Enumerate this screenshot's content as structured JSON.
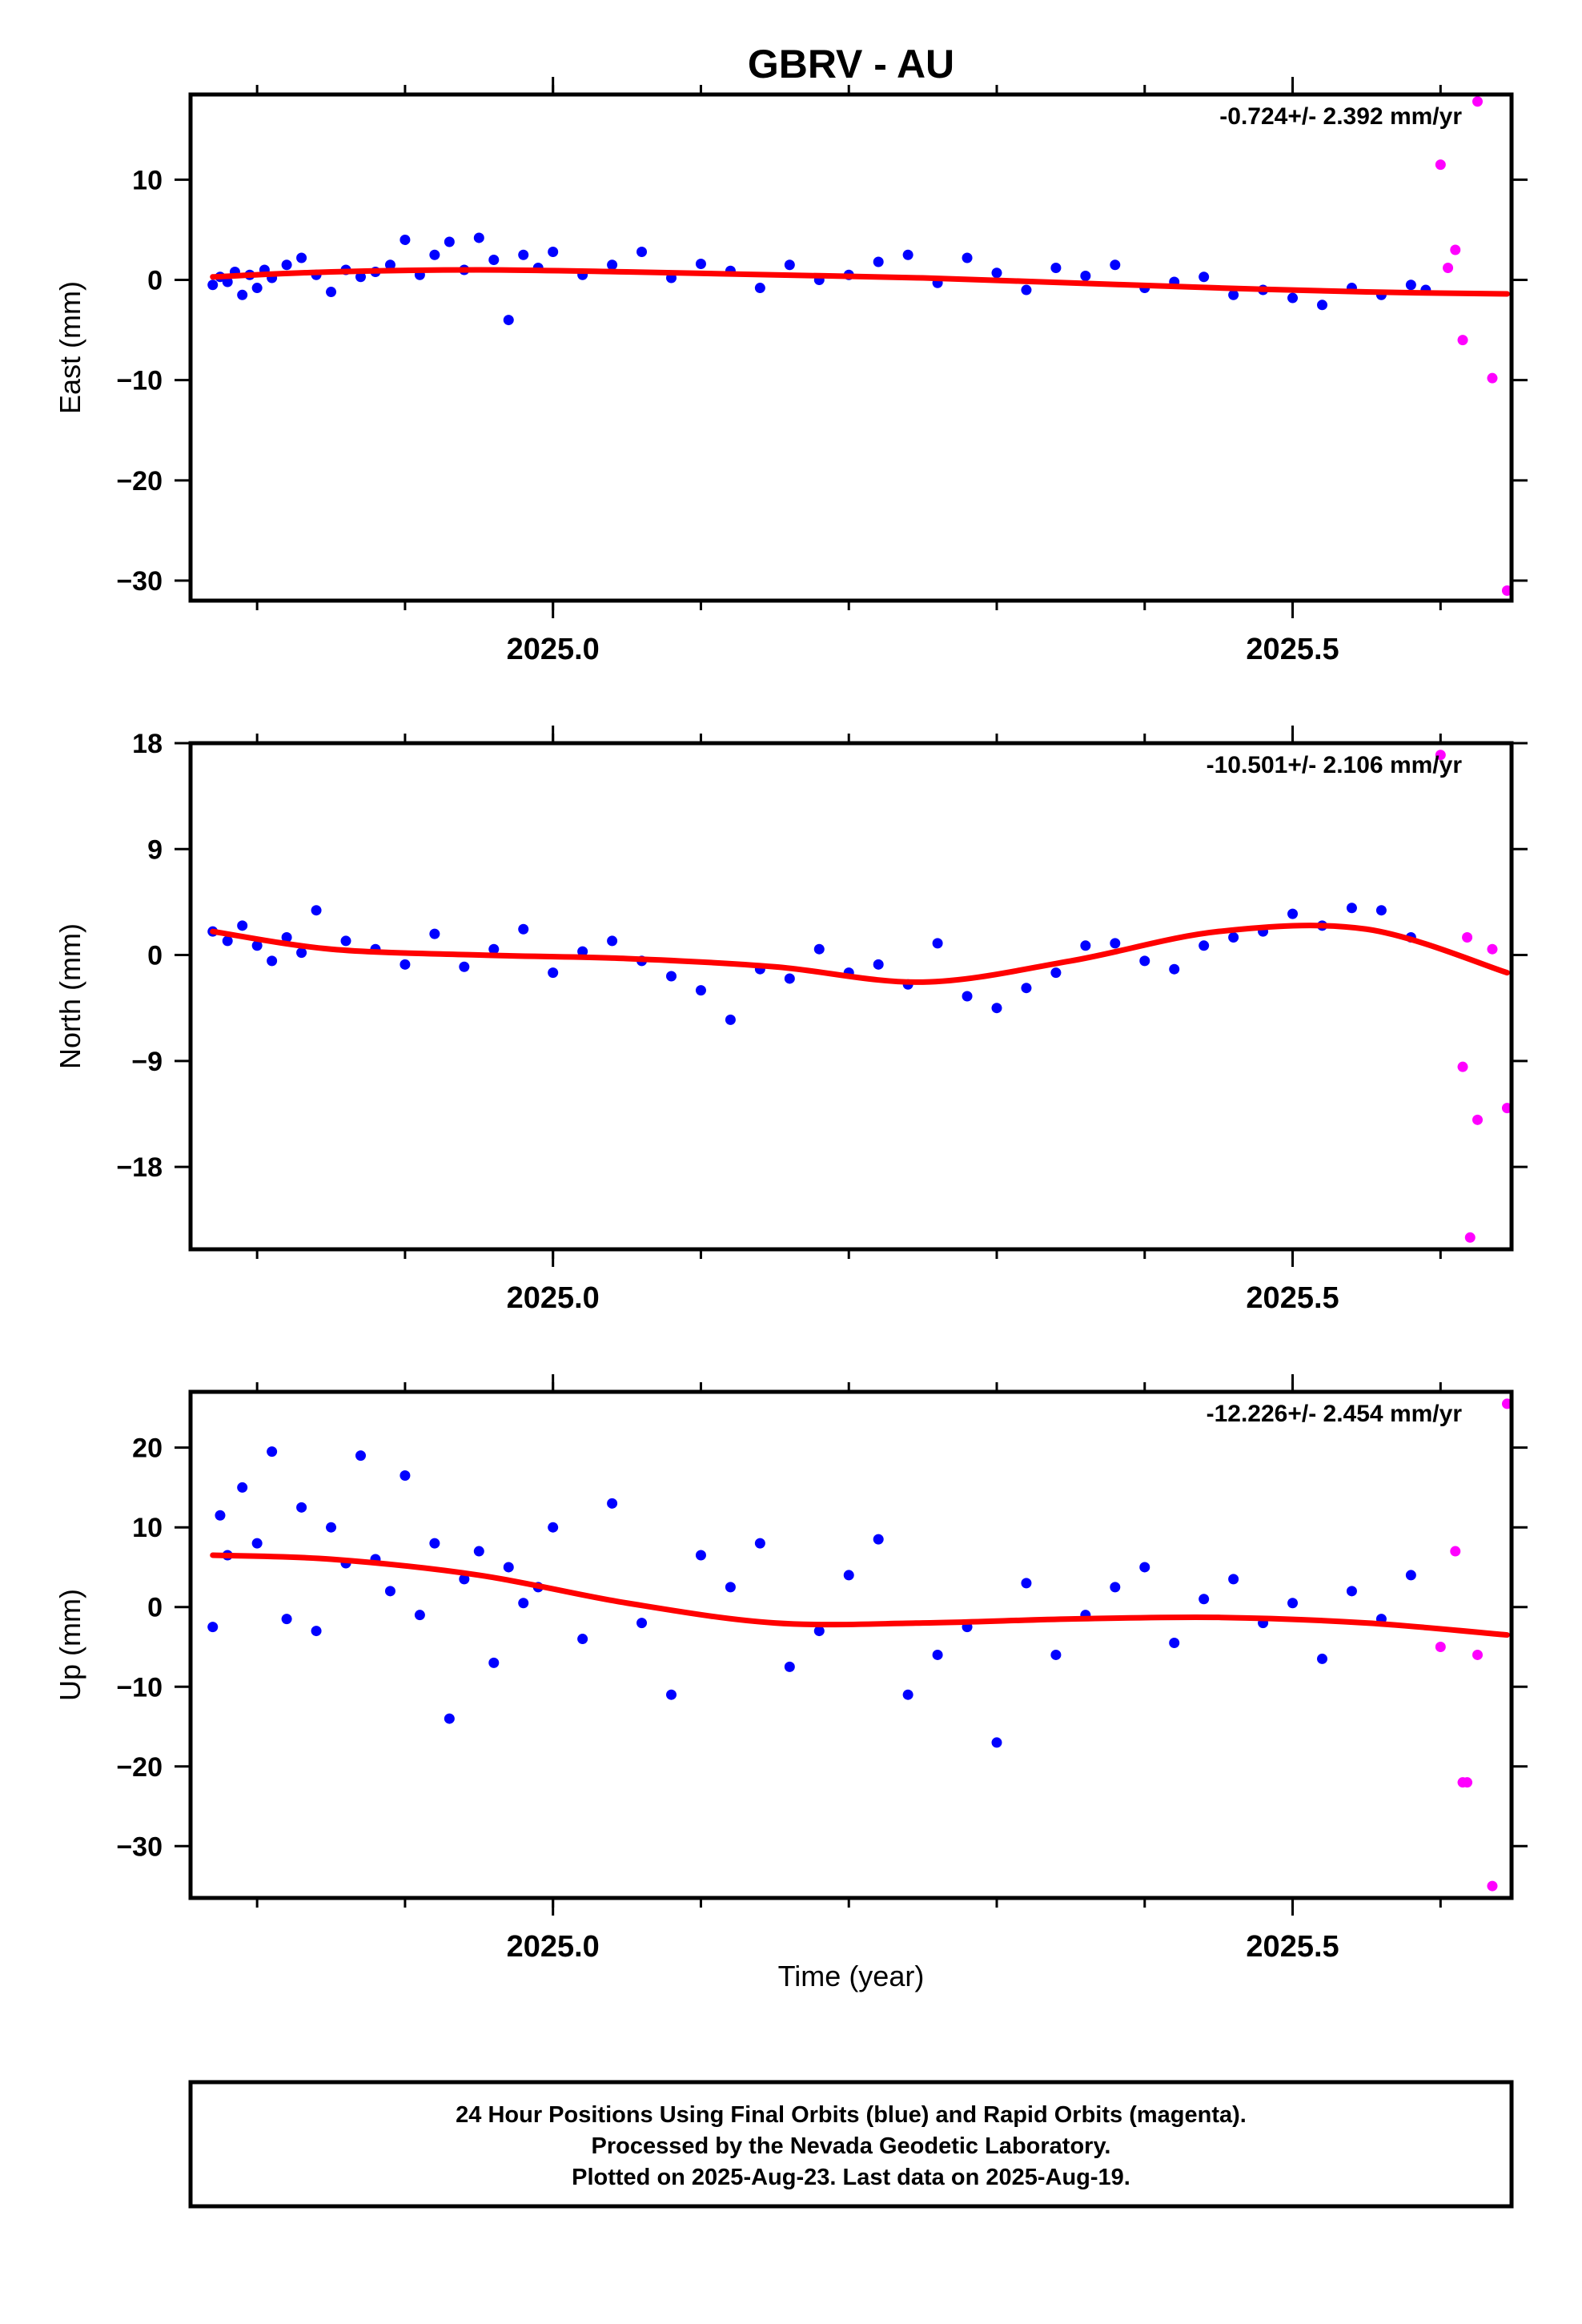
{
  "chart_data": {
    "type": "scatter",
    "title": "GBRV - AU",
    "xlabel": "Time (year)",
    "xticks": [
      2025.0,
      2025.5
    ],
    "xtick_labels": [
      "2025.0",
      "2025.5"
    ],
    "xlim": [
      2024.755,
      2025.648
    ],
    "colors": {
      "final": "#0000ff",
      "rapid": "#ff00ff",
      "fit": "#ff0000"
    },
    "footnote": [
      "24 Hour Positions Using Final Orbits (blue) and Rapid Orbits (magenta).",
      "Processed by the Nevada Geodetic Laboratory.",
      "Plotted on 2025-Aug-23. Last data on 2025-Aug-19."
    ],
    "panels": [
      {
        "name": "east",
        "ylabel": "East (mm)",
        "rate_label": "-0.724+/- 2.392 mm/yr",
        "ylim": [
          -32,
          18.5
        ],
        "yticks": [
          -30,
          -20,
          -10,
          0,
          10
        ],
        "ytick_labels": [
          "−30",
          "−20",
          "−10",
          "0",
          "10"
        ],
        "final": {
          "x": [
            2024.77,
            2024.775,
            2024.78,
            2024.785,
            2024.79,
            2024.795,
            2024.8,
            2024.805,
            2024.81,
            2024.82,
            2024.83,
            2024.84,
            2024.85,
            2024.86,
            2024.87,
            2024.88,
            2024.89,
            2024.9,
            2024.91,
            2024.92,
            2024.93,
            2024.94,
            2024.95,
            2024.96,
            2024.97,
            2024.98,
            2024.99,
            2025.0,
            2025.02,
            2025.04,
            2025.06,
            2025.08,
            2025.1,
            2025.12,
            2025.14,
            2025.16,
            2025.18,
            2025.2,
            2025.22,
            2025.24,
            2025.26,
            2025.28,
            2025.3,
            2025.32,
            2025.34,
            2025.36,
            2025.38,
            2025.4,
            2025.42,
            2025.44,
            2025.46,
            2025.48,
            2025.5,
            2025.52,
            2025.54,
            2025.56,
            2025.58,
            2025.59
          ],
          "y": [
            -0.5,
            0.3,
            -0.2,
            0.8,
            -1.5,
            0.5,
            -0.8,
            1.0,
            0.2,
            1.5,
            2.2,
            0.5,
            -1.2,
            1.0,
            0.3,
            0.8,
            1.5,
            4.0,
            0.5,
            2.5,
            3.8,
            1.0,
            4.2,
            2.0,
            -4.0,
            2.5,
            1.2,
            2.8,
            0.5,
            1.5,
            2.8,
            0.2,
            1.6,
            0.9,
            -0.8,
            1.5,
            0.0,
            0.5,
            1.8,
            2.5,
            -0.3,
            2.2,
            0.7,
            -1.0,
            1.2,
            0.4,
            1.5,
            -0.8,
            -0.2,
            0.3,
            -1.5,
            -1.0,
            -1.8,
            -2.5,
            -0.8,
            -1.5,
            -0.5,
            -1.0
          ]
        },
        "rapid": {
          "x": [
            2025.6,
            2025.605,
            2025.61,
            2025.615,
            2025.625,
            2025.635,
            2025.645
          ],
          "y": [
            11.5,
            1.2,
            3.0,
            -6.0,
            17.8,
            -9.8,
            -31.0
          ]
        },
        "fit": {
          "x": [
            2024.77,
            2024.85,
            2024.95,
            2025.05,
            2025.15,
            2025.25,
            2025.35,
            2025.45,
            2025.55,
            2025.645
          ],
          "y": [
            0.3,
            0.8,
            1.0,
            0.8,
            0.5,
            0.2,
            -0.3,
            -0.8,
            -1.2,
            -1.4
          ]
        }
      },
      {
        "name": "north",
        "ylabel": "North (mm)",
        "rate_label": "-10.501+/- 2.106 mm/yr",
        "ylim": [
          -25,
          18
        ],
        "yticks": [
          -18,
          -9,
          0,
          9,
          18
        ],
        "ytick_labels": [
          "−18",
          "−9",
          "0",
          "9",
          "18"
        ],
        "final": {
          "x": [
            2024.77,
            2024.78,
            2024.79,
            2024.8,
            2024.81,
            2024.82,
            2024.83,
            2024.84,
            2024.86,
            2024.88,
            2024.9,
            2024.92,
            2024.94,
            2024.96,
            2024.98,
            2025.0,
            2025.02,
            2025.04,
            2025.06,
            2025.08,
            2025.1,
            2025.12,
            2025.14,
            2025.16,
            2025.18,
            2025.2,
            2025.22,
            2025.24,
            2025.26,
            2025.28,
            2025.3,
            2025.32,
            2025.34,
            2025.36,
            2025.38,
            2025.4,
            2025.42,
            2025.44,
            2025.46,
            2025.48,
            2025.5,
            2025.52,
            2025.54,
            2025.56,
            2025.58
          ],
          "y": [
            2.0,
            1.2,
            2.5,
            0.8,
            -0.5,
            1.5,
            0.2,
            3.8,
            1.2,
            0.5,
            -0.8,
            1.8,
            -1.0,
            0.5,
            2.2,
            -1.5,
            0.3,
            1.2,
            -0.5,
            -1.8,
            -3.0,
            -5.5,
            -1.2,
            -2.0,
            0.5,
            -1.5,
            -0.8,
            -2.5,
            1.0,
            -3.5,
            -4.5,
            -2.8,
            -1.5,
            0.8,
            1.0,
            -0.5,
            -1.2,
            0.8,
            1.5,
            2.0,
            3.5,
            2.5,
            4.0,
            3.8,
            1.5
          ]
        },
        "rapid": {
          "x": [
            2025.6,
            2025.615,
            2025.618,
            2025.62,
            2025.625,
            2025.635,
            2025.645
          ],
          "y": [
            17.0,
            -9.5,
            1.5,
            -24.0,
            -14.0,
            0.5,
            -13.0
          ]
        },
        "fit": {
          "x": [
            2024.77,
            2024.85,
            2024.95,
            2025.05,
            2025.15,
            2025.25,
            2025.35,
            2025.45,
            2025.55,
            2025.645
          ],
          "y": [
            2.0,
            0.5,
            0.0,
            -0.3,
            -1.0,
            -2.3,
            -0.5,
            2.0,
            2.2,
            -1.5
          ]
        }
      },
      {
        "name": "up",
        "ylabel": "Up (mm)",
        "rate_label": "-12.226+/- 2.454 mm/yr",
        "ylim": [
          -36.5,
          27
        ],
        "yticks": [
          -30,
          -20,
          -10,
          0,
          10,
          20
        ],
        "ytick_labels": [
          "−30",
          "−20",
          "−10",
          "0",
          "10",
          "20"
        ],
        "final": {
          "x": [
            2024.77,
            2024.775,
            2024.78,
            2024.79,
            2024.8,
            2024.81,
            2024.82,
            2024.83,
            2024.84,
            2024.85,
            2024.86,
            2024.87,
            2024.88,
            2024.89,
            2024.9,
            2024.91,
            2024.92,
            2024.93,
            2024.94,
            2024.95,
            2024.96,
            2024.97,
            2024.98,
            2024.99,
            2025.0,
            2025.02,
            2025.04,
            2025.06,
            2025.08,
            2025.1,
            2025.12,
            2025.14,
            2025.16,
            2025.18,
            2025.2,
            2025.22,
            2025.24,
            2025.26,
            2025.28,
            2025.3,
            2025.32,
            2025.34,
            2025.36,
            2025.38,
            2025.4,
            2025.42,
            2025.44,
            2025.46,
            2025.48,
            2025.5,
            2025.52,
            2025.54,
            2025.56,
            2025.58
          ],
          "y": [
            -2.5,
            11.5,
            6.5,
            15.0,
            8.0,
            19.5,
            -1.5,
            12.5,
            -3.0,
            10.0,
            5.5,
            19.0,
            6.0,
            2.0,
            16.5,
            -1.0,
            8.0,
            -14.0,
            3.5,
            7.0,
            -7.0,
            5.0,
            0.5,
            2.5,
            10.0,
            -4.0,
            13.0,
            -2.0,
            -11.0,
            6.5,
            2.5,
            8.0,
            -7.5,
            -3.0,
            4.0,
            8.5,
            -11.0,
            -6.0,
            -2.5,
            -17.0,
            3.0,
            -6.0,
            -1.0,
            2.5,
            5.0,
            -4.5,
            1.0,
            3.5,
            -2.0,
            0.5,
            -6.5,
            2.0,
            -1.5,
            4.0
          ]
        },
        "rapid": {
          "x": [
            2025.6,
            2025.61,
            2025.615,
            2025.618,
            2025.625,
            2025.635,
            2025.645
          ],
          "y": [
            -5.0,
            7.0,
            -22.0,
            -22.0,
            -6.0,
            -35.0,
            25.5
          ]
        },
        "fit": {
          "x": [
            2024.77,
            2024.85,
            2024.95,
            2025.05,
            2025.15,
            2025.25,
            2025.35,
            2025.45,
            2025.55,
            2025.645
          ],
          "y": [
            6.5,
            6.0,
            4.0,
            0.5,
            -2.0,
            -2.0,
            -1.5,
            -1.3,
            -2.0,
            -3.5
          ]
        }
      }
    ]
  }
}
